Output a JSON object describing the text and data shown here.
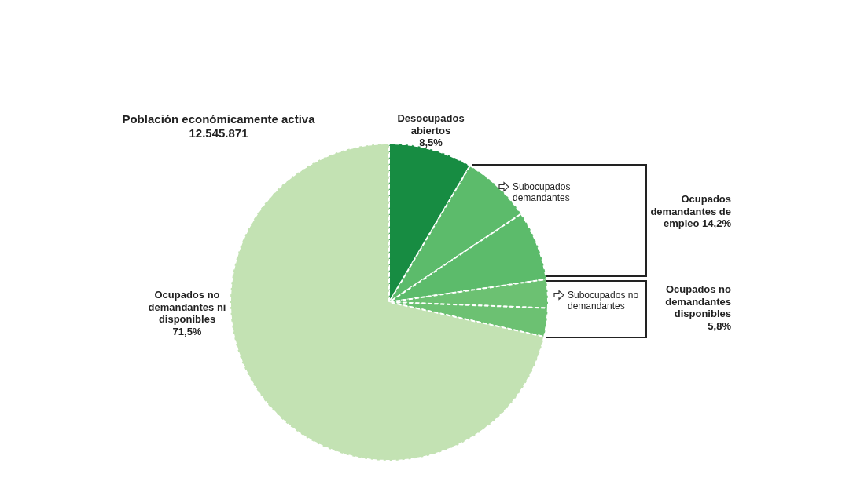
{
  "chart_data": {
    "type": "pie",
    "title": "Población económicamente activa",
    "subtitle": "12.545.871",
    "categories": [
      "Desocupados abiertos",
      "Subocupados demandantes",
      null,
      "Subocupados no demandantes",
      null,
      "Ocupados no demandantes ni disponibles"
    ],
    "values": [
      8.5,
      7.1,
      7.1,
      2.9,
      2.9,
      71.5
    ],
    "colors": [
      "#178c42",
      "#5cbb6b",
      "#5cbb6b",
      "#6cc172",
      "#6cc172",
      "#c3e2b3"
    ],
    "value_labels": [
      "8,5%",
      null,
      null,
      null,
      null,
      "71,5%"
    ],
    "annotations": [
      "Ocupados demandantes de empleo 14,2%",
      "Ocupados no demandantes disponibles 5,8%"
    ]
  }
}
